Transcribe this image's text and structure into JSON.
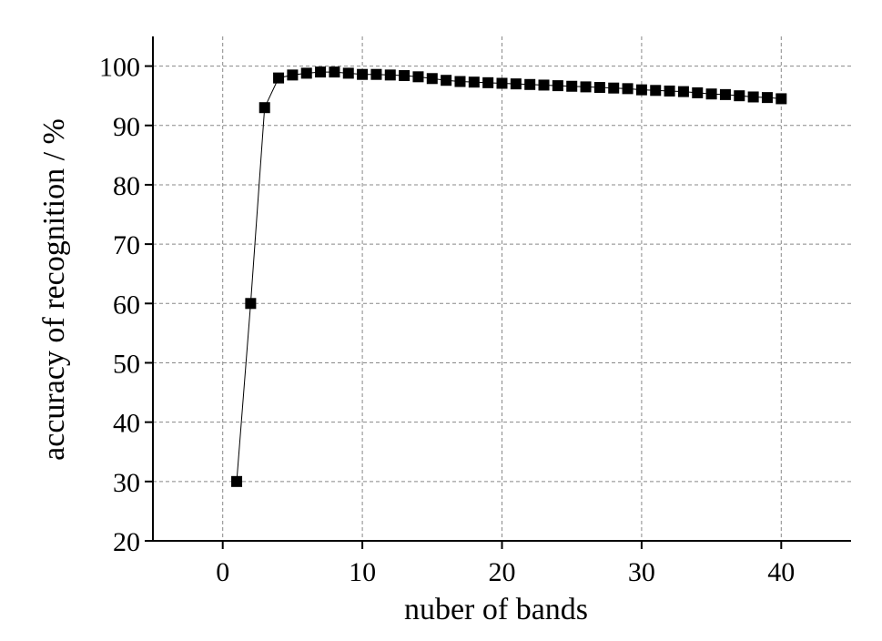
{
  "chart_data": {
    "type": "line",
    "x_label": "nuber of bands",
    "y_label": "accuracy of recognition / %",
    "x": [
      1,
      2,
      3,
      4,
      5,
      6,
      7,
      8,
      9,
      10,
      11,
      12,
      13,
      14,
      15,
      16,
      17,
      18,
      19,
      20,
      21,
      22,
      23,
      24,
      25,
      26,
      27,
      28,
      29,
      30,
      31,
      32,
      33,
      34,
      35,
      36,
      37,
      38,
      39,
      40
    ],
    "series": [
      {
        "color": "#000000",
        "values": [
          30,
          60,
          93,
          98,
          98.5,
          98.8,
          99,
          99,
          98.8,
          98.6,
          98.6,
          98.5,
          98.4,
          98.2,
          97.9,
          97.6,
          97.4,
          97.3,
          97.2,
          97.1,
          97.0,
          96.9,
          96.8,
          96.7,
          96.6,
          96.5,
          96.4,
          96.3,
          96.2,
          96.0,
          95.9,
          95.8,
          95.7,
          95.5,
          95.3,
          95.2,
          95.0,
          94.8,
          94.7,
          94.5
        ]
      }
    ],
    "xlim": [
      -5,
      45
    ],
    "xticks": [
      0,
      10,
      20,
      30,
      40
    ],
    "ylim": [
      20,
      105
    ],
    "yticks": [
      20,
      30,
      40,
      50,
      60,
      70,
      80,
      90,
      100
    ],
    "grid": true
  }
}
